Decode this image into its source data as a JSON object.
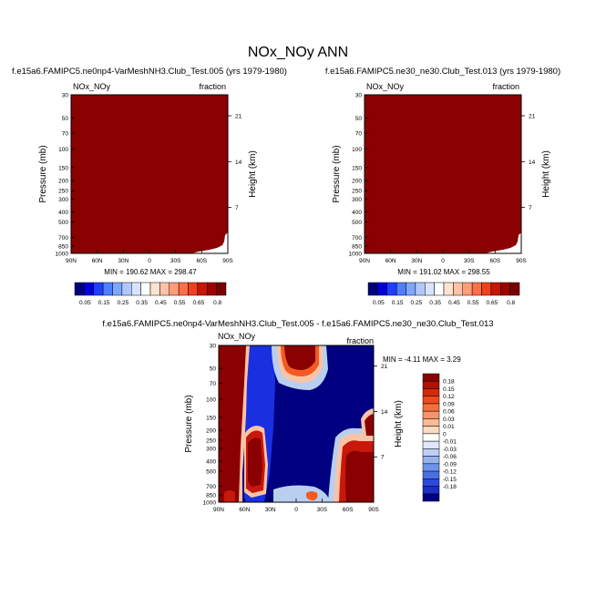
{
  "title": "NOx_NOy ANN",
  "colors": {
    "dark_red": "#8b0000",
    "dark_blue": "#000080",
    "mid_blue": "#1a2fe0",
    "light_blue": "#b9cff0",
    "white": "#ffffff",
    "light_orange": "#fbc3a6",
    "orange_red": "#f25a21",
    "red": "#c8170b"
  },
  "chart_data": [
    {
      "type": "heatmap",
      "title": "f.e15a6.FAMIPC5.ne0np4-VarMeshNH3.Club_Test.005 (yrs 1979-1980)",
      "variable_label": "NOx_NOy",
      "units_label": "fraction",
      "ylabel": "Pressure (mb)",
      "y2label": "Height (km)",
      "x_ticks": [
        "90N",
        "60N",
        "30N",
        "0",
        "30S",
        "60S",
        "90S"
      ],
      "y_ticks": [
        "30",
        "50",
        "70",
        "100",
        "150",
        "200",
        "250",
        "300",
        "400",
        "500",
        "700",
        "850",
        "1000"
      ],
      "y2_ticks": [
        "21",
        "14",
        "7"
      ],
      "min_max_text": "MIN = 190.62   MAX = 298.47",
      "colorbar_labels": [
        "0.05",
        "0.15",
        "0.25",
        "0.35",
        "0.45",
        "0.55",
        "0.65",
        "0.8"
      ],
      "min": 190.62,
      "max": 298.47
    },
    {
      "type": "heatmap",
      "title": "f.e15a6.FAMIPC5.ne30_ne30.Club_Test.013 (yrs 1979-1980)",
      "variable_label": "NOx_NOy",
      "units_label": "fraction",
      "ylabel": "Pressure (mb)",
      "y2label": "Height (km)",
      "x_ticks": [
        "90N",
        "60N",
        "30N",
        "0",
        "30S",
        "60S",
        "90S"
      ],
      "y_ticks": [
        "30",
        "50",
        "70",
        "100",
        "150",
        "200",
        "250",
        "300",
        "400",
        "500",
        "700",
        "850",
        "1000"
      ],
      "y2_ticks": [
        "21",
        "14",
        "7"
      ],
      "min_max_text": "MIN = 191.02   MAX = 298.55",
      "colorbar_labels": [
        "0.05",
        "0.15",
        "0.25",
        "0.35",
        "0.45",
        "0.55",
        "0.65",
        "0.8"
      ],
      "min": 191.02,
      "max": 298.55
    },
    {
      "type": "heatmap",
      "title": "f.e15a6.FAMIPC5.ne0np4-VarMeshNH3.Club_Test.005 - f.e15a6.FAMIPC5.ne30_ne30.Club_Test.013",
      "variable_label": "NOx_NOy",
      "units_label": "fraction",
      "ylabel": "Pressure (mb)",
      "y2label": "Height (km)",
      "x_ticks": [
        "90N",
        "60N",
        "30N",
        "0",
        "30S",
        "60S",
        "90S"
      ],
      "y_ticks": [
        "30",
        "50",
        "70",
        "100",
        "150",
        "200",
        "250",
        "300",
        "400",
        "500",
        "700",
        "850",
        "1000"
      ],
      "y2_ticks": [
        "21",
        "14",
        "7"
      ],
      "min_max_text": "MIN = -4.11   MAX =  3.29",
      "colorbar_labels": [
        "0.18",
        "0.15",
        "0.12",
        "0.09",
        "0.06",
        "0.03",
        "0.01",
        "0",
        "-0.01",
        "-0.03",
        "-0.06",
        "-0.09",
        "-0.12",
        "-0.15",
        "-0.18"
      ],
      "min": -4.11,
      "max": 3.29
    }
  ]
}
